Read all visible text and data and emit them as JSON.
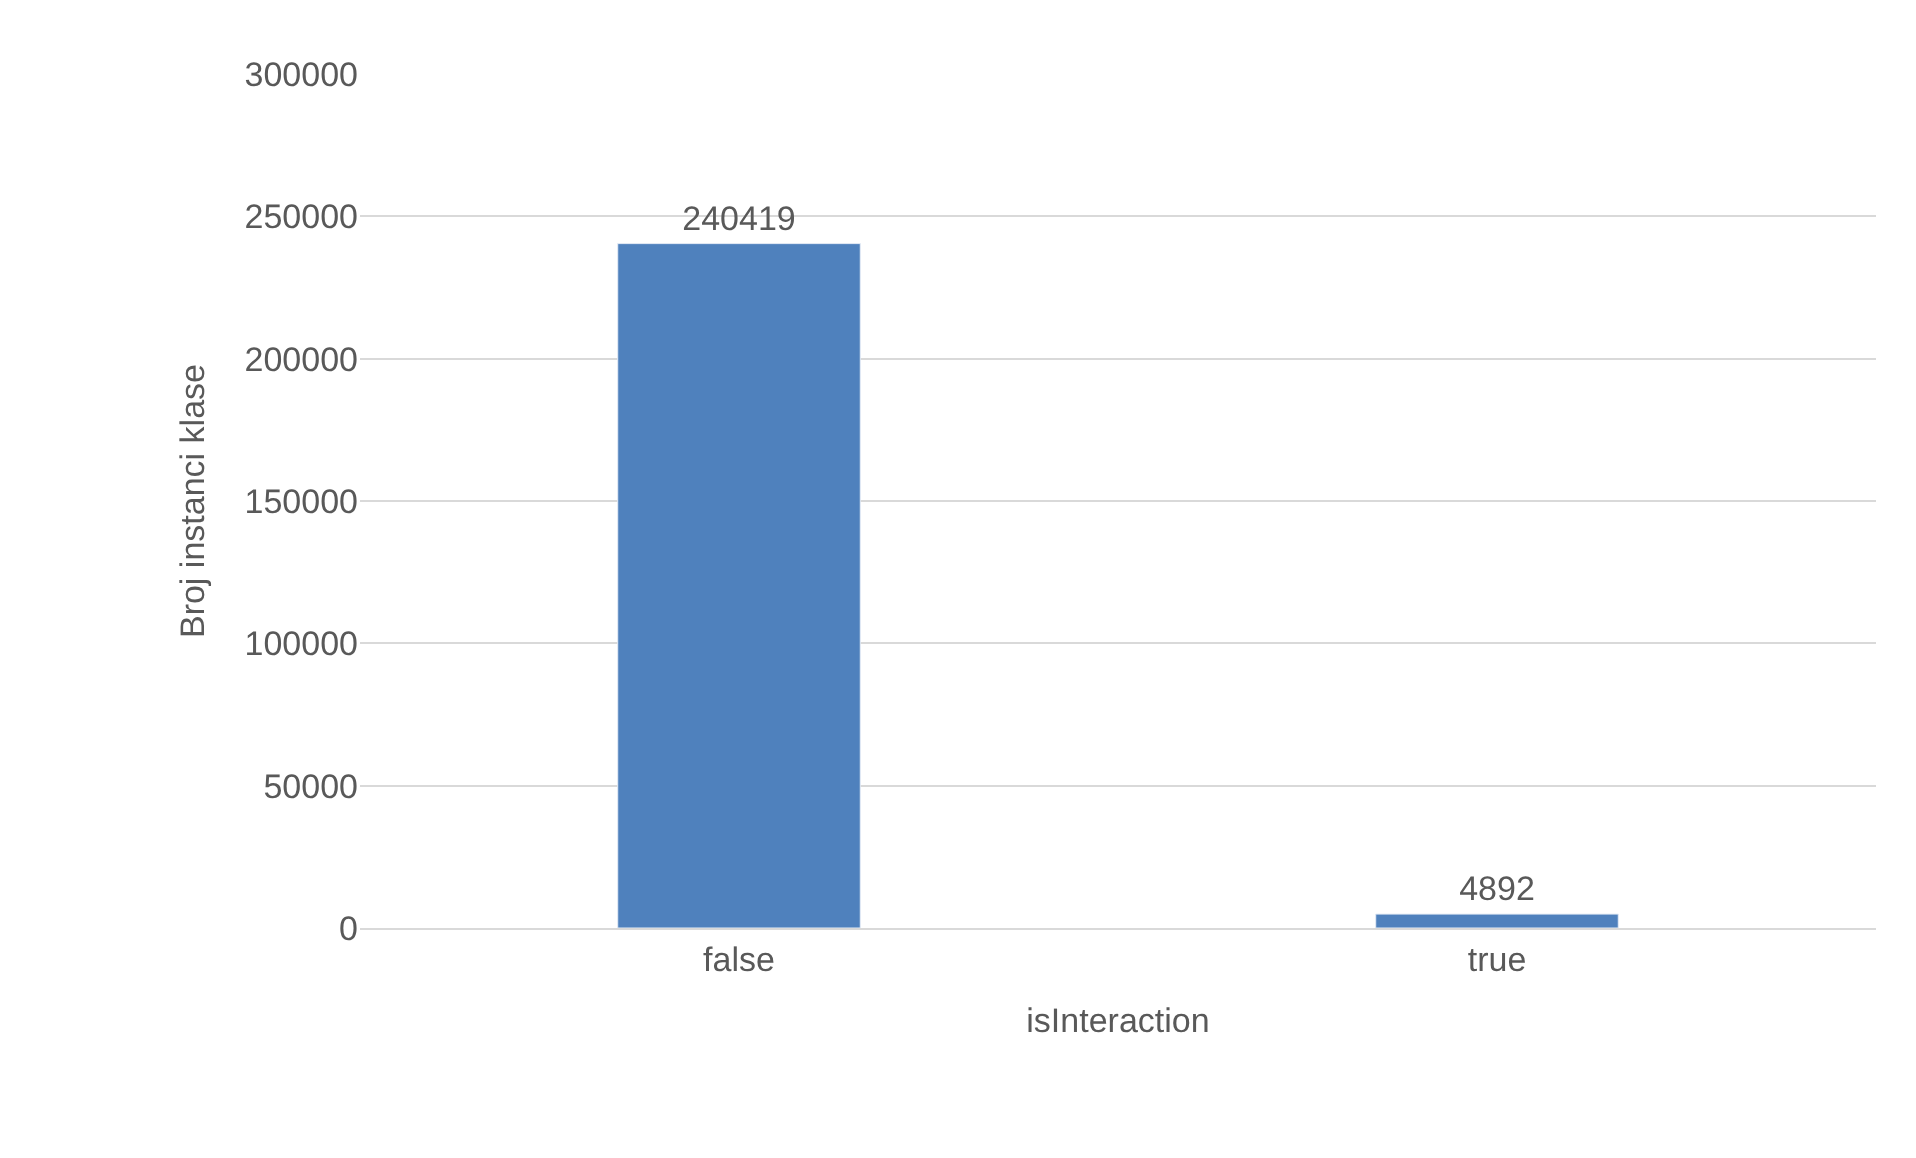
{
  "chart_data": {
    "type": "bar",
    "xlabel": "isInteraction",
    "ylabel": "Broj instanci klase",
    "categories": [
      "false",
      "true"
    ],
    "series": [
      {
        "color": "#4f81bd",
        "values": [
          240419,
          4892
        ]
      }
    ],
    "ylim": [
      0,
      300000
    ],
    "yticks": [
      0,
      50000,
      100000,
      150000,
      200000,
      250000,
      300000
    ],
    "grid": "y",
    "data_labels": true,
    "legend": false
  }
}
